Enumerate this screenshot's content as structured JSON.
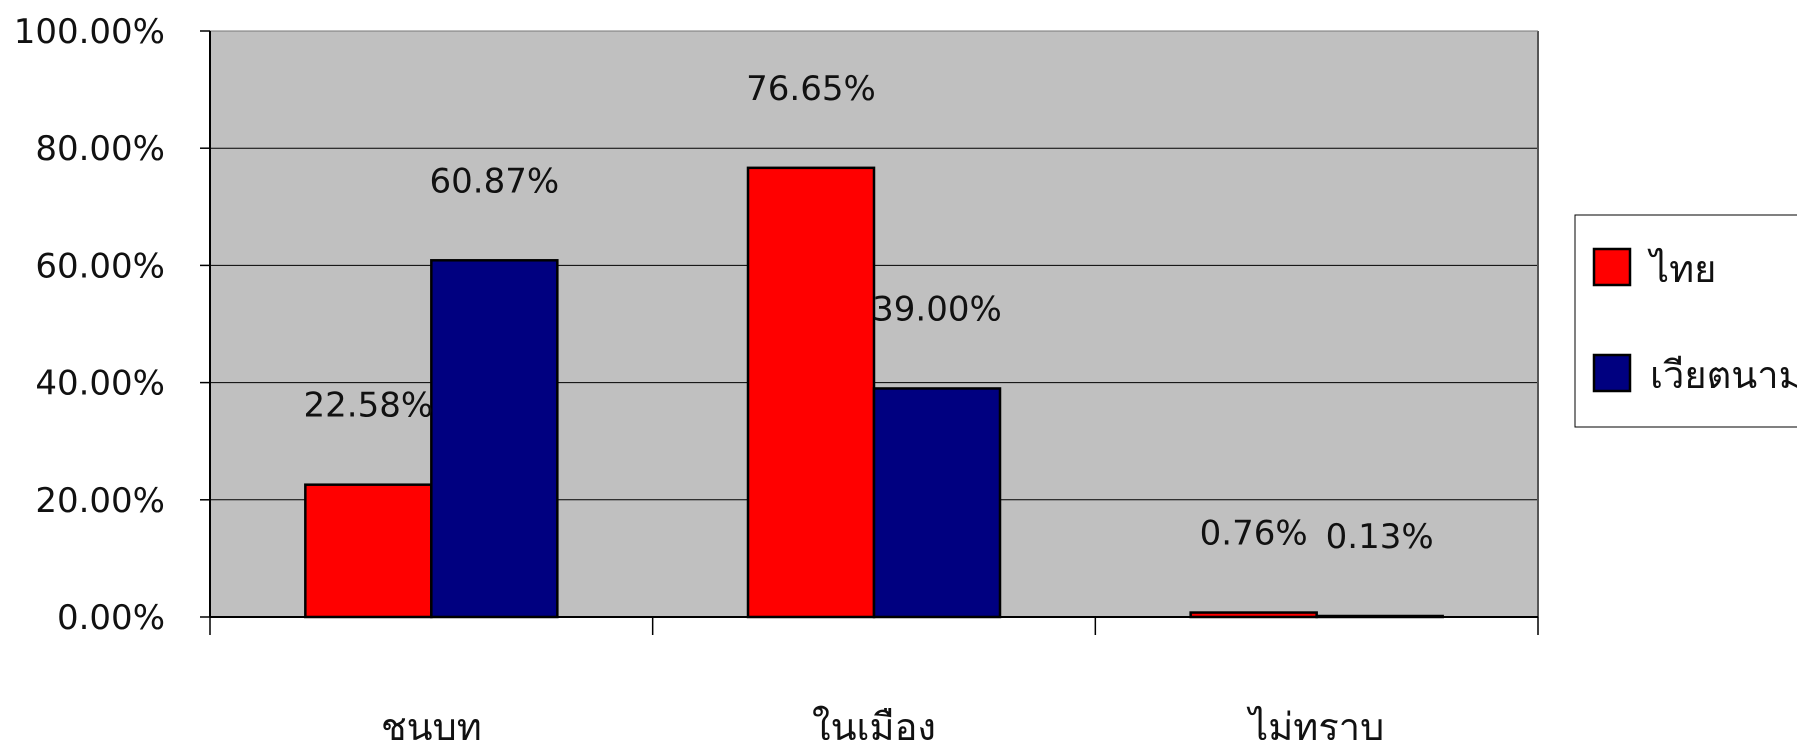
{
  "chart_data": {
    "type": "bar",
    "categories": [
      "ชนบท",
      "ในเมือง",
      "ไม่ทราบ"
    ],
    "series": [
      {
        "name": "ไทย",
        "color": "#ff0000",
        "values": [
          22.58,
          76.65,
          0.76
        ],
        "labels": [
          "22.58%",
          "76.65%",
          "0.76%"
        ]
      },
      {
        "name": "เวียตนาม",
        "color": "#000080",
        "values": [
          60.87,
          39.0,
          0.13
        ],
        "labels": [
          "60.87%",
          "39.00%",
          "0.13%"
        ]
      }
    ],
    "y_ticks": [
      "0.00%",
      "20.00%",
      "40.00%",
      "60.00%",
      "80.00%",
      "100.00%"
    ],
    "ylim": [
      0,
      100
    ],
    "grid": true,
    "plot_background": "#c0c0c0",
    "legend_position": "right"
  }
}
